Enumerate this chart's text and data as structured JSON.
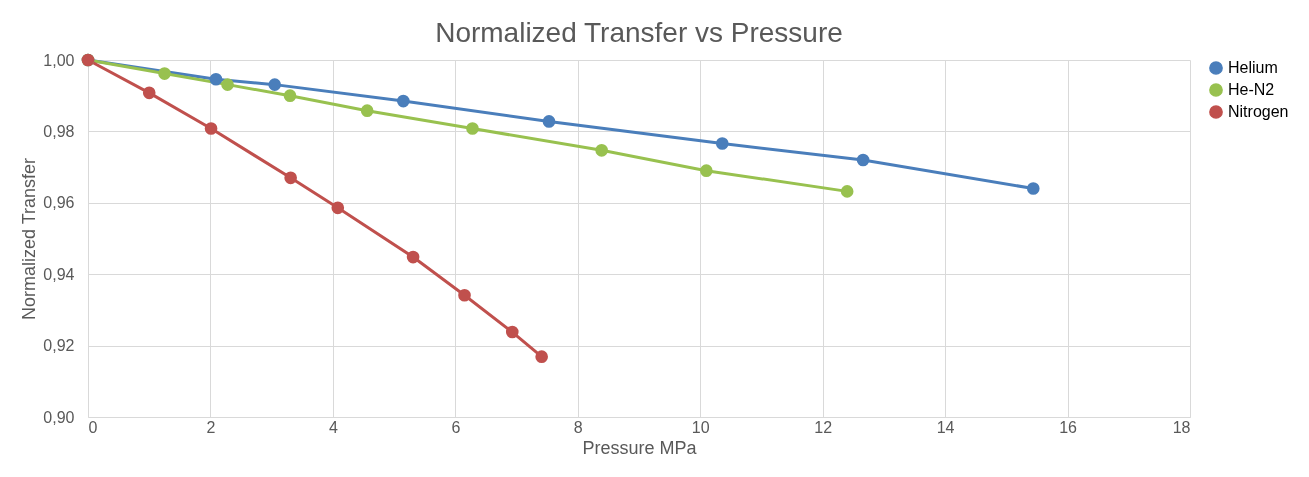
{
  "chart_data": {
    "type": "line",
    "title": "Normalized Transfer vs Pressure",
    "xlabel": "Pressure MPa",
    "ylabel": "Normalized Transfer",
    "xlim": [
      0,
      18
    ],
    "xticks": [
      0,
      2,
      4,
      6,
      8,
      10,
      12,
      14,
      16,
      18
    ],
    "ylim": [
      0.9,
      1.0
    ],
    "yticks": [
      {
        "value": 0.9,
        "label": "0,90"
      },
      {
        "value": 0.92,
        "label": "0,92"
      },
      {
        "value": 0.94,
        "label": "0,94"
      },
      {
        "value": 0.96,
        "label": "0,96"
      },
      {
        "value": 0.98,
        "label": "0,98"
      },
      {
        "value": 1.0,
        "label": "1,00"
      }
    ],
    "grid": true,
    "legend": "right",
    "marker": "circle",
    "line_style": "solid",
    "series": [
      {
        "name": "Helium",
        "color": "#4a7ebb",
        "x": [
          0,
          2.09,
          3.05,
          5.15,
          7.53,
          10.36,
          12.66,
          15.44
        ],
        "values": [
          1.0,
          0.9946,
          0.9931,
          0.9885,
          0.9828,
          0.9766,
          0.972,
          0.964
        ]
      },
      {
        "name": "He-N2",
        "color": "#98c14f",
        "x": [
          0,
          1.25,
          2.28,
          3.3,
          4.56,
          6.28,
          8.39,
          10.1,
          12.4
        ],
        "values": [
          1.0,
          0.9962,
          0.9931,
          0.99,
          0.9858,
          0.9808,
          0.9747,
          0.969,
          0.9632
        ]
      },
      {
        "name": "Nitrogen",
        "color": "#c0504d",
        "x": [
          0,
          1.0,
          2.01,
          3.31,
          4.08,
          5.31,
          6.15,
          6.93,
          7.41
        ],
        "values": [
          1.0,
          0.9908,
          0.9808,
          0.967,
          0.9586,
          0.9448,
          0.9341,
          0.9238,
          0.9169
        ]
      }
    ]
  }
}
